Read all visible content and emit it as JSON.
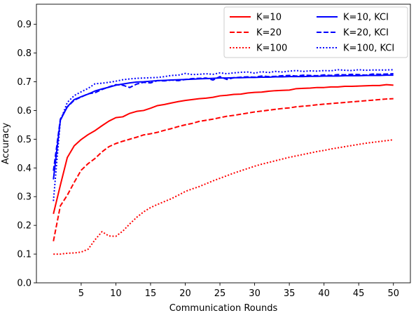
{
  "chart_data": {
    "type": "line",
    "title": "",
    "xlabel": "Communication Rounds",
    "ylabel": "Accuracy",
    "xlim": [
      -1.45,
      52.45
    ],
    "ylim": [
      0,
      0.97
    ],
    "xticks": [
      5,
      10,
      15,
      20,
      25,
      30,
      35,
      40,
      45,
      50
    ],
    "yticks": [
      0.0,
      0.1,
      0.2,
      0.3,
      0.4,
      0.5,
      0.6,
      0.7,
      0.8,
      0.9
    ],
    "grid": false,
    "legend": "top-right, two columns",
    "x": [
      1,
      2,
      3,
      4,
      5,
      6,
      7,
      8,
      9,
      10,
      11,
      12,
      13,
      14,
      15,
      16,
      17,
      18,
      19,
      20,
      21,
      22,
      23,
      24,
      25,
      26,
      27,
      28,
      29,
      30,
      31,
      32,
      33,
      34,
      35,
      36,
      37,
      38,
      39,
      40,
      41,
      42,
      43,
      44,
      45,
      46,
      47,
      48,
      49,
      50
    ],
    "series": [
      {
        "name": "K=10",
        "color": "#ff0000",
        "dash": "solid",
        "values": [
          0.24,
          0.34,
          0.436,
          0.477,
          0.499,
          0.516,
          0.53,
          0.547,
          0.563,
          0.575,
          0.578,
          0.59,
          0.597,
          0.6,
          0.608,
          0.617,
          0.621,
          0.626,
          0.631,
          0.635,
          0.638,
          0.641,
          0.643,
          0.646,
          0.651,
          0.653,
          0.656,
          0.657,
          0.661,
          0.663,
          0.664,
          0.667,
          0.669,
          0.67,
          0.671,
          0.676,
          0.677,
          0.678,
          0.68,
          0.68,
          0.682,
          0.682,
          0.684,
          0.684,
          0.685,
          0.686,
          0.687,
          0.687,
          0.69,
          0.688
        ]
      },
      {
        "name": "K=20",
        "color": "#ff0000",
        "dash": "dashed",
        "values": [
          0.145,
          0.268,
          0.305,
          0.35,
          0.392,
          0.415,
          0.433,
          0.456,
          0.474,
          0.485,
          0.493,
          0.5,
          0.507,
          0.515,
          0.519,
          0.524,
          0.531,
          0.537,
          0.544,
          0.55,
          0.555,
          0.562,
          0.566,
          0.57,
          0.575,
          0.58,
          0.583,
          0.587,
          0.591,
          0.595,
          0.598,
          0.601,
          0.604,
          0.607,
          0.609,
          0.613,
          0.615,
          0.617,
          0.62,
          0.622,
          0.624,
          0.626,
          0.628,
          0.63,
          0.632,
          0.634,
          0.636,
          0.638,
          0.64,
          0.641
        ]
      },
      {
        "name": "K=100",
        "color": "#ff0000",
        "dash": "dotted",
        "values": [
          0.1,
          0.1,
          0.103,
          0.104,
          0.107,
          0.117,
          0.15,
          0.178,
          0.163,
          0.162,
          0.18,
          0.205,
          0.228,
          0.247,
          0.262,
          0.273,
          0.283,
          0.293,
          0.305,
          0.318,
          0.327,
          0.335,
          0.345,
          0.355,
          0.364,
          0.373,
          0.382,
          0.39,
          0.398,
          0.406,
          0.413,
          0.419,
          0.425,
          0.431,
          0.437,
          0.442,
          0.447,
          0.452,
          0.457,
          0.461,
          0.466,
          0.47,
          0.474,
          0.478,
          0.482,
          0.486,
          0.489,
          0.492,
          0.495,
          0.498
        ]
      },
      {
        "name": "K=10, KCI",
        "color": "#0000ff",
        "dash": "solid",
        "values": [
          0.36,
          0.566,
          0.613,
          0.638,
          0.648,
          0.657,
          0.668,
          0.675,
          0.681,
          0.688,
          0.692,
          0.696,
          0.699,
          0.7,
          0.702,
          0.704,
          0.705,
          0.706,
          0.707,
          0.708,
          0.709,
          0.71,
          0.711,
          0.712,
          0.713,
          0.713,
          0.714,
          0.714,
          0.715,
          0.715,
          0.716,
          0.716,
          0.717,
          0.717,
          0.718,
          0.718,
          0.718,
          0.719,
          0.719,
          0.72,
          0.72,
          0.72,
          0.721,
          0.721,
          0.721,
          0.722,
          0.722,
          0.722,
          0.723,
          0.723
        ]
      },
      {
        "name": "K=20, KCI",
        "color": "#0000ff",
        "dash": "dashed",
        "values": [
          0.39,
          0.57,
          0.612,
          0.636,
          0.647,
          0.658,
          0.662,
          0.673,
          0.682,
          0.69,
          0.688,
          0.68,
          0.692,
          0.698,
          0.696,
          0.704,
          0.703,
          0.706,
          0.704,
          0.708,
          0.711,
          0.712,
          0.713,
          0.706,
          0.718,
          0.708,
          0.714,
          0.716,
          0.717,
          0.716,
          0.72,
          0.718,
          0.719,
          0.721,
          0.722,
          0.72,
          0.723,
          0.722,
          0.721,
          0.724,
          0.722,
          0.725,
          0.724,
          0.726,
          0.725,
          0.723,
          0.727,
          0.726,
          0.727,
          0.728
        ]
      },
      {
        "name": "K=100, KCI",
        "color": "#0000ff",
        "dash": "dotted",
        "values": [
          0.285,
          0.564,
          0.628,
          0.652,
          0.665,
          0.677,
          0.693,
          0.695,
          0.698,
          0.702,
          0.707,
          0.71,
          0.712,
          0.713,
          0.714,
          0.715,
          0.718,
          0.722,
          0.723,
          0.729,
          0.725,
          0.726,
          0.728,
          0.726,
          0.731,
          0.728,
          0.731,
          0.733,
          0.734,
          0.73,
          0.735,
          0.732,
          0.736,
          0.734,
          0.737,
          0.739,
          0.736,
          0.738,
          0.737,
          0.739,
          0.738,
          0.742,
          0.74,
          0.739,
          0.742,
          0.74,
          0.741,
          0.741,
          0.741,
          0.742
        ]
      }
    ]
  }
}
